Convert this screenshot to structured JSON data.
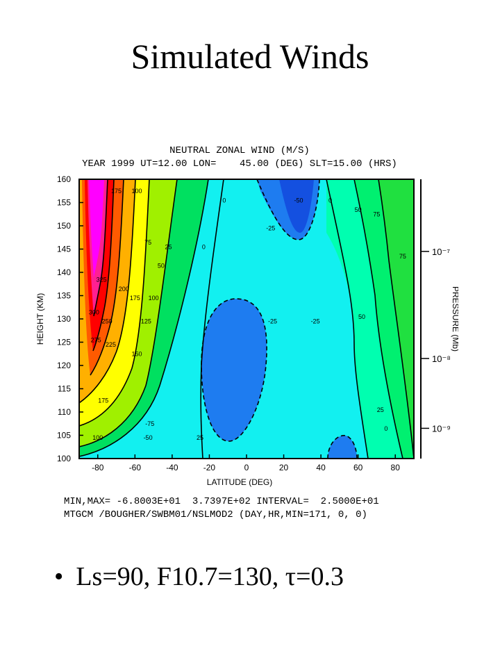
{
  "slide": {
    "title": "Simulated Winds",
    "bullet": "Ls=90, F10.7=130, τ=0.3"
  },
  "chart_data": {
    "type": "heatmap",
    "title": "NEUTRAL ZONAL WIND (M/S)",
    "subtitle": "YEAR 1999 UT=12.00 LON=    45.00 (DEG) SLT=15.00 (HRS)",
    "xlabel": "LATITUDE (DEG)",
    "ylabel": "HEIGHT (KM)",
    "y2label": "PRESSURE (Mb)",
    "xlim": [
      -90,
      90
    ],
    "ylim": [
      100,
      160
    ],
    "x_ticks": [
      -80,
      -60,
      -40,
      -20,
      0,
      20,
      40,
      60,
      80
    ],
    "y_ticks": [
      100,
      105,
      110,
      115,
      120,
      125,
      130,
      135,
      140,
      145,
      150,
      155,
      160
    ],
    "y2_ticks": [
      {
        "label": "10⁻⁷",
        "height": 144.5
      },
      {
        "label": "10⁻⁸",
        "height": 121.5
      },
      {
        "label": "10⁻⁹",
        "height": 106.5
      }
    ],
    "footer": [
      "MIN,MAX= -6.8003E+01  3.7397E+02 INTERVAL=  2.5000E+01",
      "MTGCM /BOUGHER/SWBM01/NSLMOD2 (DAY,HR,MIN=171, 0, 0)"
    ],
    "min": -68.003,
    "max": 373.97,
    "interval": 25,
    "grid": false,
    "contour_labels": [
      {
        "text": "175",
        "lat": -70,
        "h": 157
      },
      {
        "text": "100",
        "lat": -59,
        "h": 157
      },
      {
        "text": "0",
        "lat": -12,
        "h": 155
      },
      {
        "text": "-50",
        "lat": 28,
        "h": 155
      },
      {
        "text": "0",
        "lat": 45,
        "h": 155
      },
      {
        "text": "50",
        "lat": 60,
        "h": 153
      },
      {
        "text": "75",
        "lat": 70,
        "h": 152
      },
      {
        "text": "-25",
        "lat": 13,
        "h": 149
      },
      {
        "text": "0",
        "lat": -23,
        "h": 145
      },
      {
        "text": "25",
        "lat": -42,
        "h": 145
      },
      {
        "text": "75",
        "lat": -53,
        "h": 146
      },
      {
        "text": "50",
        "lat": -46,
        "h": 141
      },
      {
        "text": "75",
        "lat": 84,
        "h": 143
      },
      {
        "text": "325",
        "lat": -78,
        "h": 138
      },
      {
        "text": "200",
        "lat": -66,
        "h": 136
      },
      {
        "text": "175",
        "lat": -60,
        "h": 134
      },
      {
        "text": "100",
        "lat": -50,
        "h": 134
      },
      {
        "text": "300",
        "lat": -82,
        "h": 131
      },
      {
        "text": "250",
        "lat": -75,
        "h": 129
      },
      {
        "text": "125",
        "lat": -54,
        "h": 129
      },
      {
        "text": "-25",
        "lat": 14,
        "h": 129
      },
      {
        "text": "-25",
        "lat": 37,
        "h": 129
      },
      {
        "text": "50",
        "lat": 62,
        "h": 130
      },
      {
        "text": "275",
        "lat": -81,
        "h": 125
      },
      {
        "text": "225",
        "lat": -73,
        "h": 124
      },
      {
        "text": "150",
        "lat": -59,
        "h": 122
      },
      {
        "text": "175",
        "lat": -77,
        "h": 112
      },
      {
        "text": "-75",
        "lat": -52,
        "h": 107
      },
      {
        "text": "-50",
        "lat": -53,
        "h": 104
      },
      {
        "text": "100",
        "lat": -80,
        "h": 104
      },
      {
        "text": "25",
        "lat": -25,
        "h": 104
      },
      {
        "text": "25",
        "lat": 72,
        "h": 110
      },
      {
        "text": "0",
        "lat": 75,
        "h": 106
      }
    ]
  }
}
